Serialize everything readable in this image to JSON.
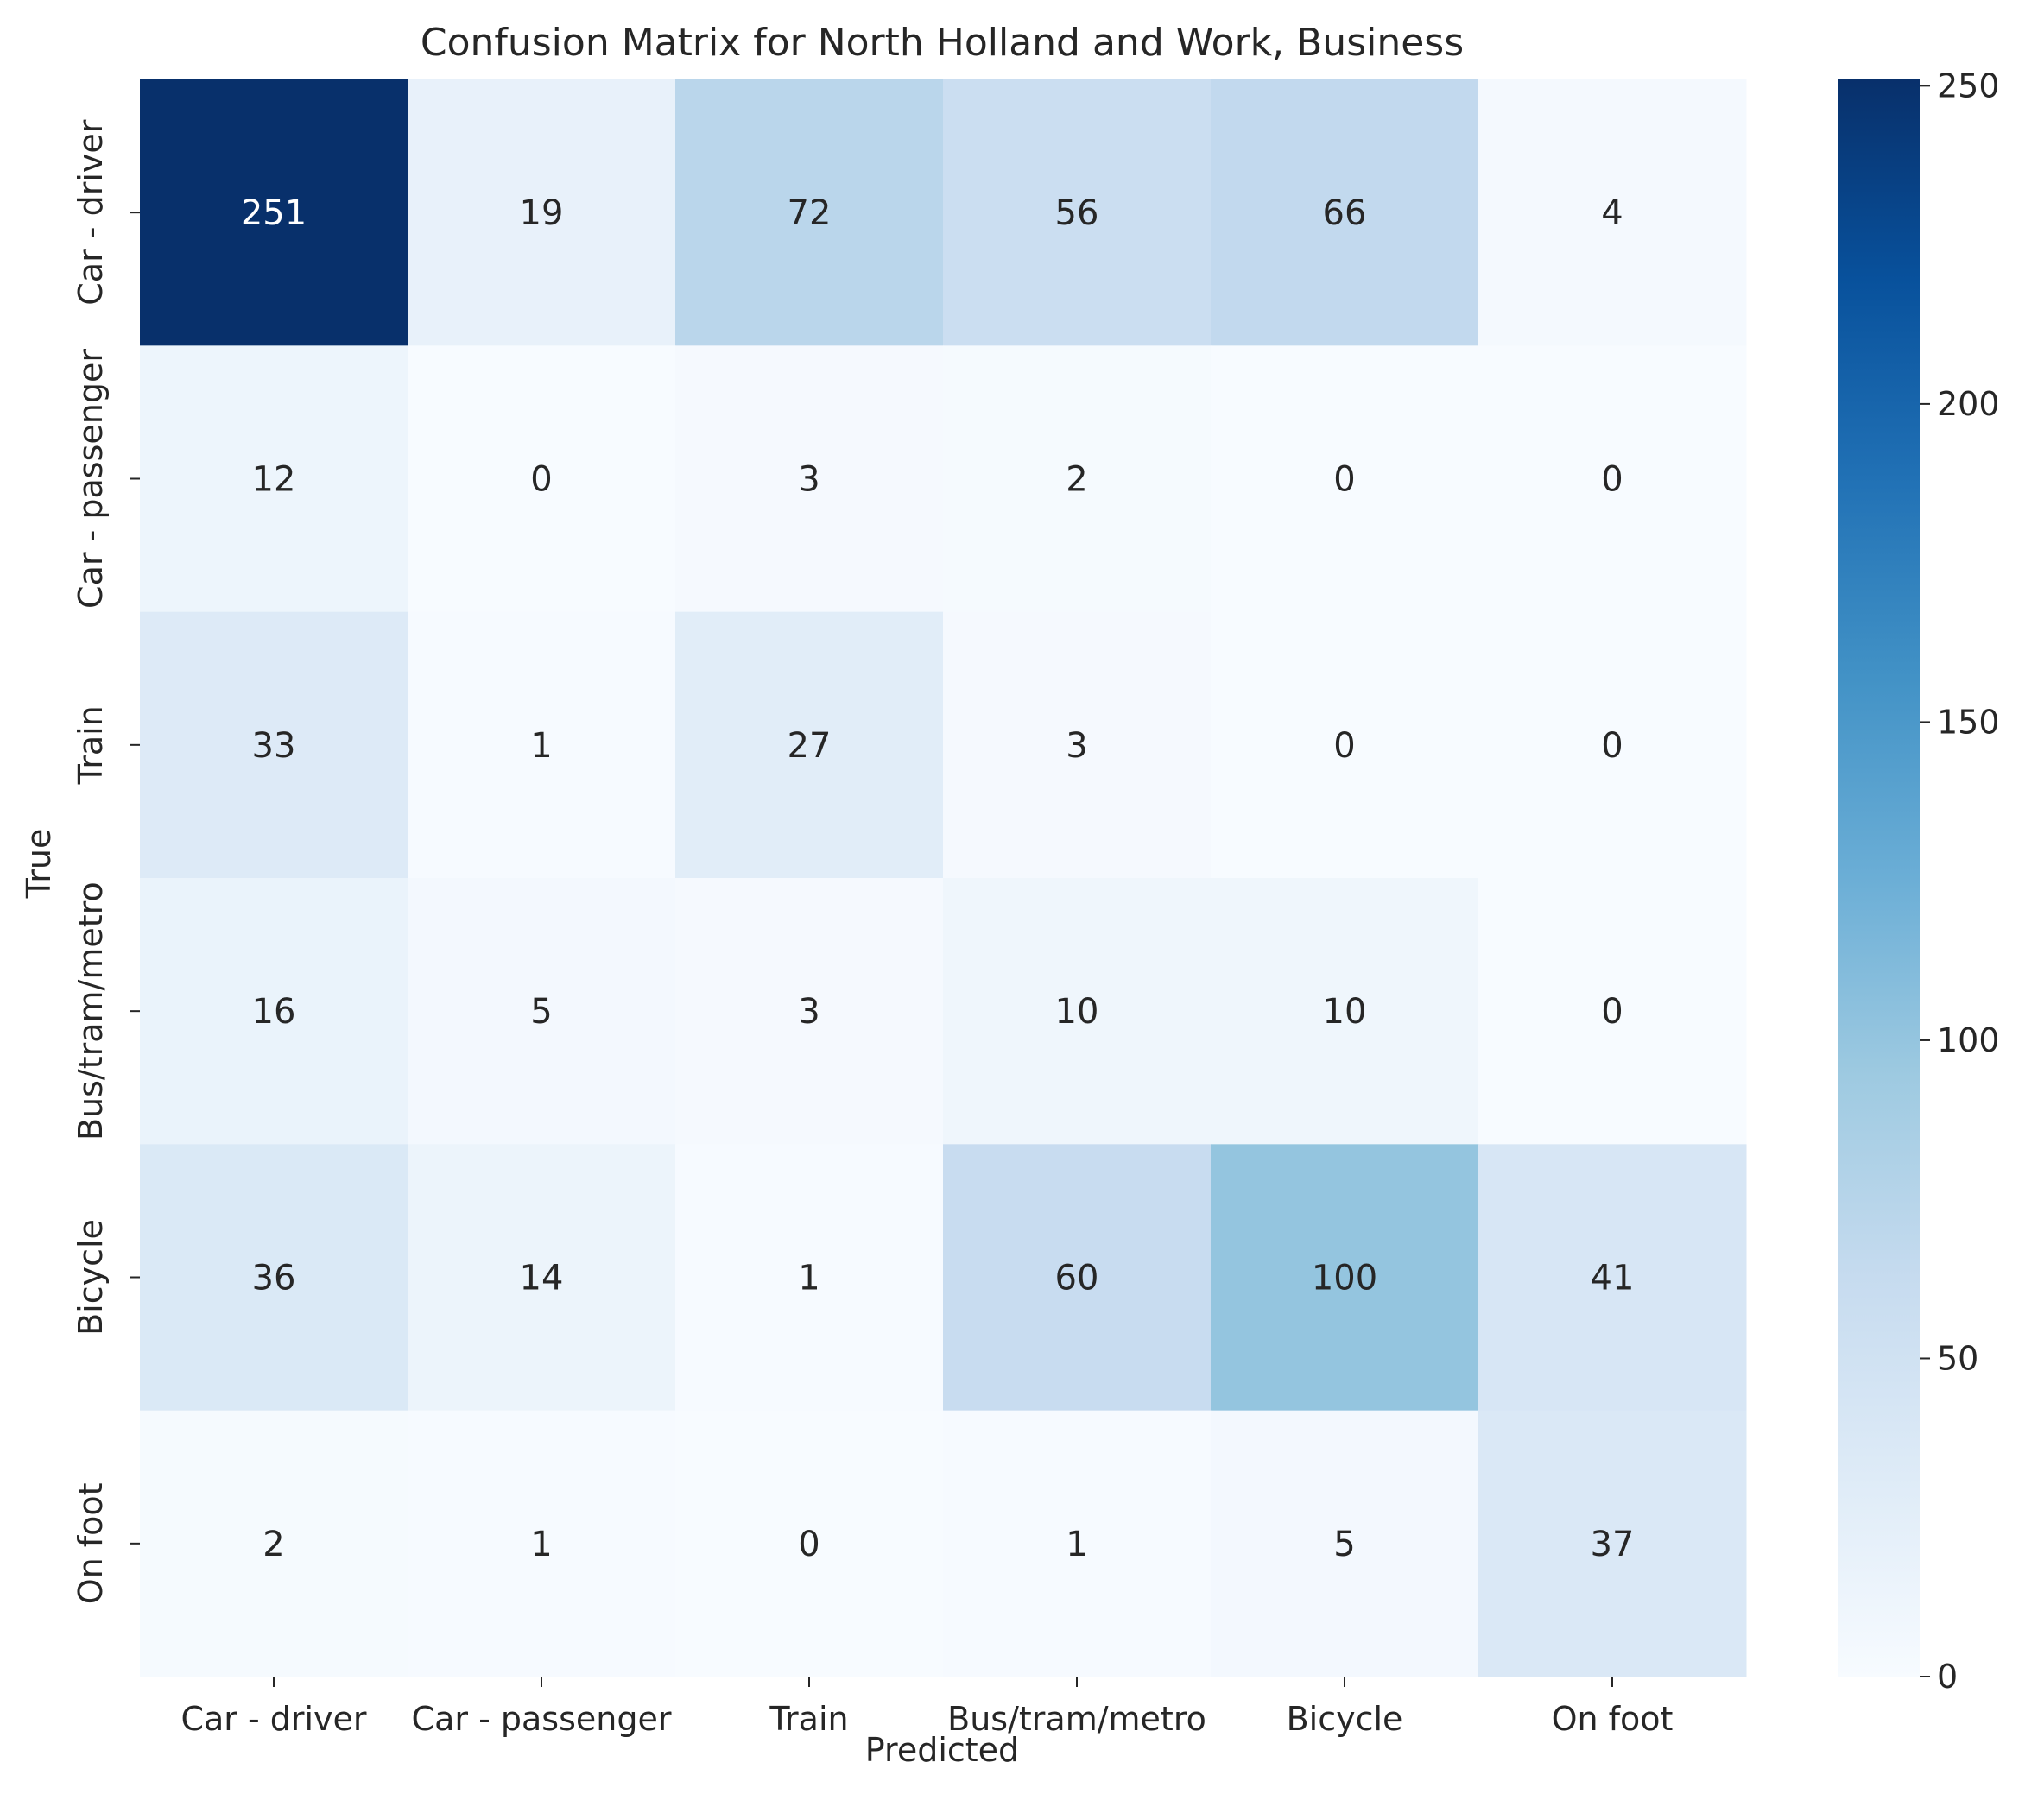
{
  "chart_data": {
    "type": "heatmap",
    "title": "Confusion Matrix for North Holland and Work, Business",
    "xlabel": "Predicted",
    "ylabel": "True",
    "x_categories": [
      "Car - driver",
      "Car - passenger",
      "Train",
      "Bus/tram/metro",
      "Bicycle",
      "On foot"
    ],
    "y_categories": [
      "Car - driver",
      "Car - passenger",
      "Train",
      "Bus/tram/metro",
      "Bicycle",
      "On foot"
    ],
    "matrix": [
      [
        251,
        19,
        72,
        56,
        66,
        4
      ],
      [
        12,
        0,
        3,
        2,
        0,
        0
      ],
      [
        33,
        1,
        27,
        3,
        0,
        0
      ],
      [
        16,
        5,
        3,
        10,
        10,
        0
      ],
      [
        36,
        14,
        1,
        60,
        100,
        41
      ],
      [
        2,
        1,
        0,
        1,
        5,
        37
      ]
    ],
    "colormap": "Blues",
    "colorbar": {
      "range": [
        0,
        251
      ],
      "ticks": [
        0,
        50,
        100,
        150,
        200,
        250
      ],
      "low_color": "#f7fbff",
      "high_color": "#08306b"
    },
    "grid": false
  }
}
